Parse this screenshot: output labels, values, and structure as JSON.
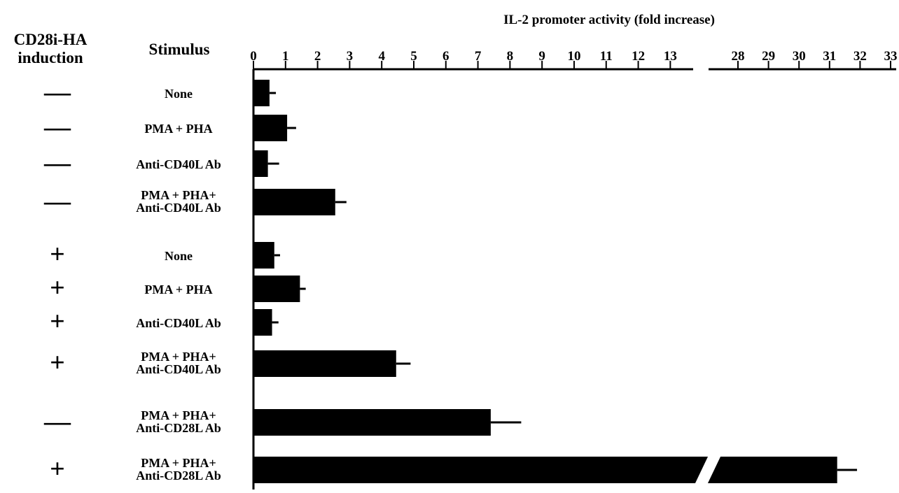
{
  "chart_data": {
    "type": "bar",
    "orientation": "horizontal",
    "title": "IL-2 promoter activity (fold increase)",
    "column_headers": {
      "induction": "CD28i-HA\ninduction",
      "stimulus": "Stimulus"
    },
    "x_axis": {
      "segments": [
        {
          "range": [
            0,
            14
          ],
          "ticks": [
            0,
            1,
            2,
            3,
            4,
            5,
            6,
            7,
            8,
            9,
            10,
            11,
            12,
            13
          ]
        },
        {
          "range": [
            27.5,
            33
          ],
          "ticks": [
            28,
            29,
            30,
            31,
            32,
            33
          ]
        }
      ],
      "broken": true
    },
    "categories": [
      {
        "induction": "—",
        "stimulus": [
          "None"
        ],
        "value": 0.5,
        "error": 0.2
      },
      {
        "induction": "—",
        "stimulus": [
          "PMA + PHA"
        ],
        "value": 1.05,
        "error": 0.28
      },
      {
        "induction": "—",
        "stimulus": [
          "Anti-CD40L Ab"
        ],
        "value": 0.45,
        "error": 0.35
      },
      {
        "induction": "—",
        "stimulus": [
          "PMA + PHA+",
          "Anti-CD40L Ab"
        ],
        "value": 2.55,
        "error": 0.35
      },
      {
        "induction": "+",
        "stimulus": [
          "None"
        ],
        "value": 0.65,
        "error": 0.18
      },
      {
        "induction": "+",
        "stimulus": [
          "PMA + PHA"
        ],
        "value": 1.45,
        "error": 0.18
      },
      {
        "induction": "+",
        "stimulus": [
          "Anti-CD40L Ab"
        ],
        "value": 0.58,
        "error": 0.2
      },
      {
        "induction": "+",
        "stimulus": [
          "PMA + PHA+",
          "Anti-CD40L Ab"
        ],
        "value": 4.45,
        "error": 0.45
      },
      {
        "induction": "—",
        "stimulus": [
          "PMA + PHA+",
          "Anti-CD28L Ab"
        ],
        "value": 7.4,
        "error": 0.95
      },
      {
        "induction": "+",
        "stimulus": [
          "PMA + PHA+",
          "Anti-CD28L Ab"
        ],
        "value": 31.25,
        "error": 0.65
      }
    ],
    "bar_color": "#000000",
    "grid": false,
    "legend": "none"
  }
}
